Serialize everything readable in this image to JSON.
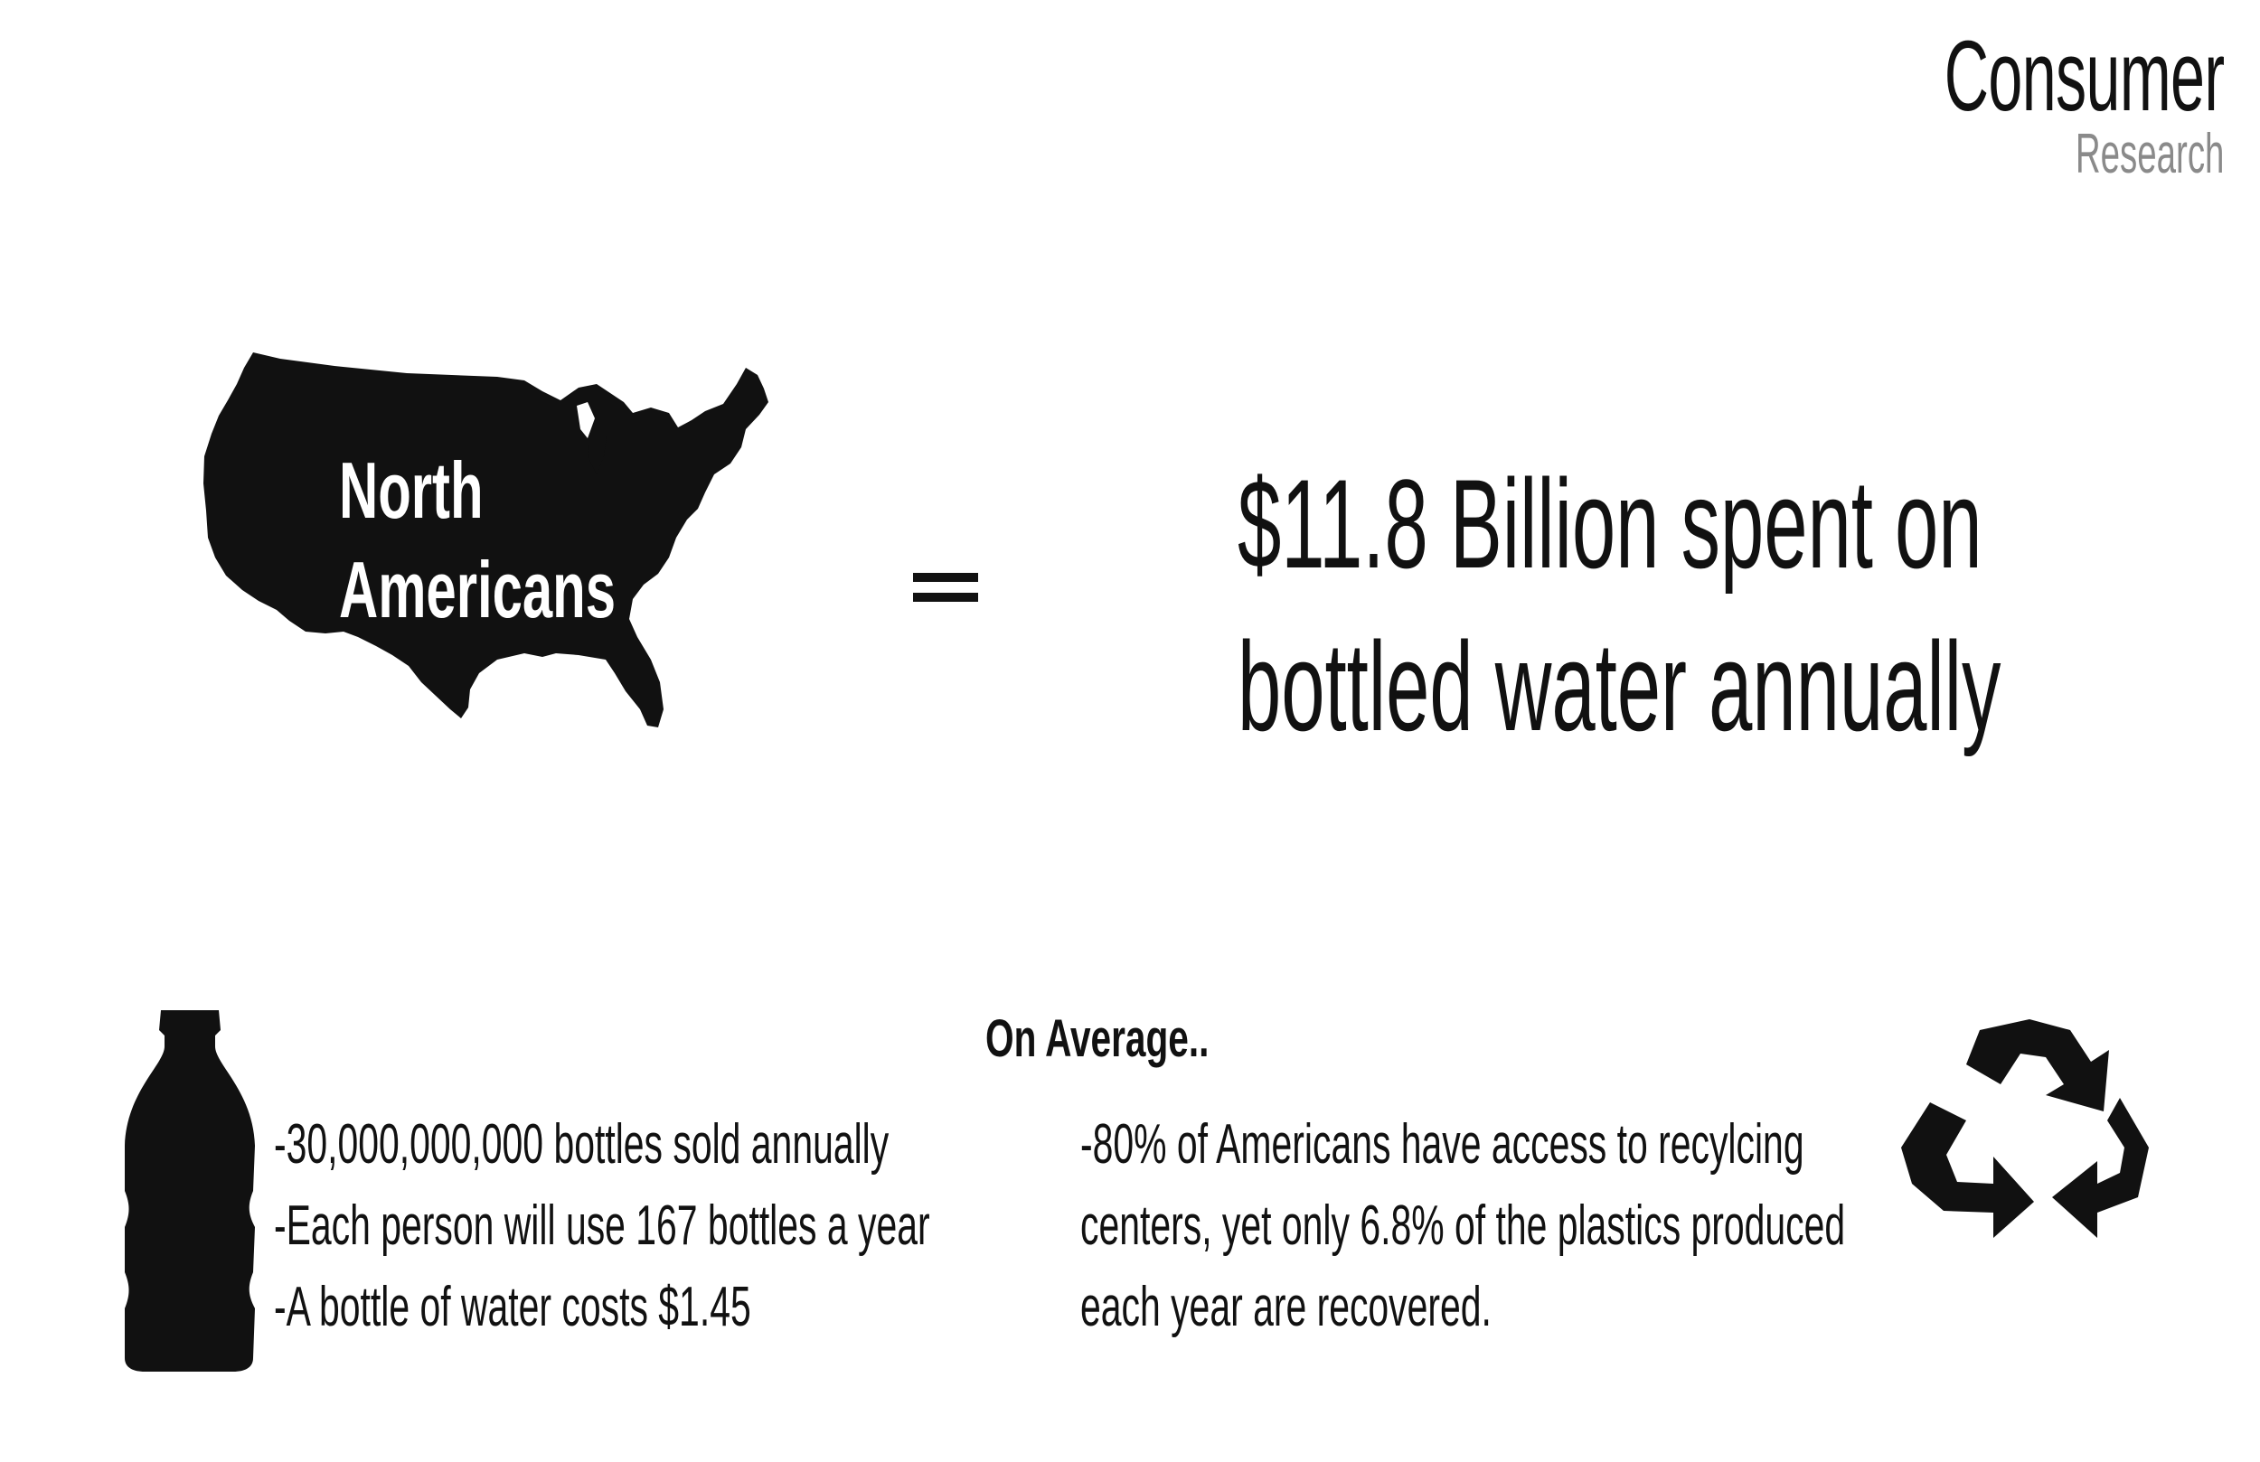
{
  "brand": {
    "title": "Consumer",
    "subtitle": "Research"
  },
  "map": {
    "icon": "usa-map-icon",
    "label_line1": "North",
    "label_line2": "Americans"
  },
  "equals": "=",
  "headline": {
    "line1": "$11.8 Billion spent on",
    "line2": "bottled water annually"
  },
  "section": {
    "heading": "On Average.."
  },
  "stats": [
    "-30,000,000,000 bottles sold annually",
    "-Each person will use 167 bottles a year",
    "-A bottle of water costs $1.45"
  ],
  "recycling": {
    "lines": [
      "-80% of Americans have access to recylcing",
      "centers, yet only 6.8% of the plastics produced",
      "each year are recovered."
    ]
  },
  "icons": {
    "bottle": "water-bottle-icon",
    "recycle": "recycle-icon"
  },
  "colors": {
    "text": "#111111",
    "subtitle": "#8a8a8a",
    "background": "#ffffff"
  }
}
